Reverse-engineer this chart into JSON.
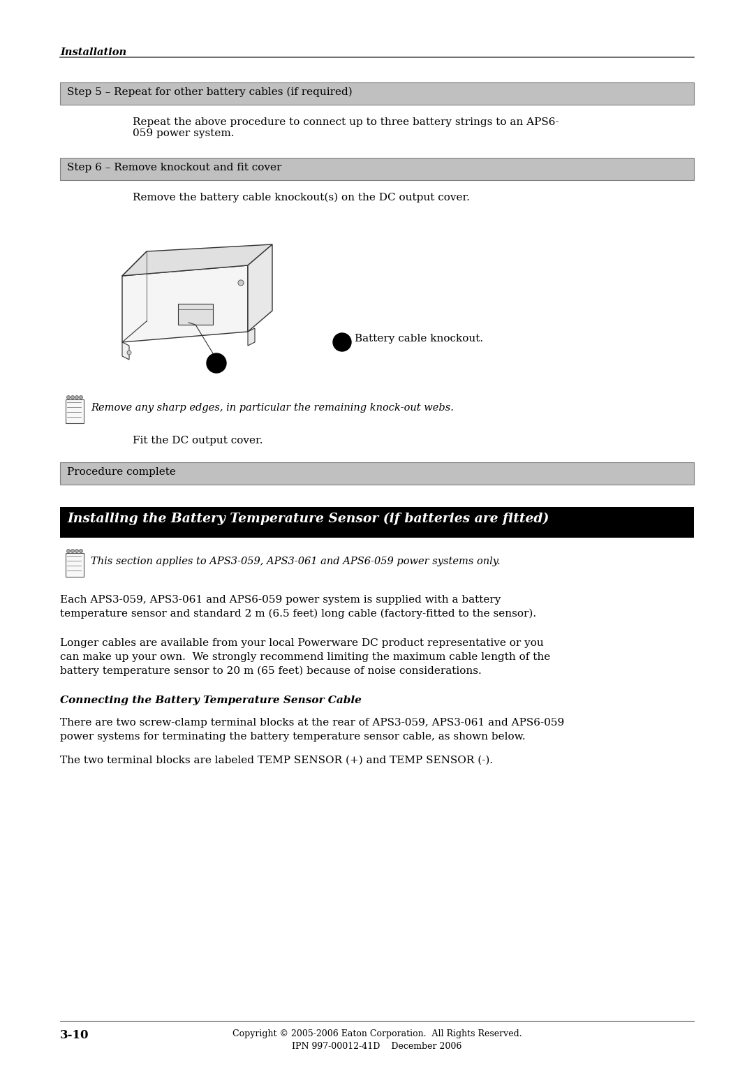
{
  "page_bg": "#ffffff",
  "body_fontsize": 11.0,
  "header_text": "Installation",
  "step5_box_text": "Step 5 – Repeat for other battery cables (if required)",
  "step5_body": "Repeat the above procedure to connect up to three battery strings to an APS6-\n059 power system.",
  "step6_box_text": "Step 6 – Remove knockout and fit cover",
  "step6_body": "Remove the battery cable knockout(s) on the DC output cover.",
  "note_text": "Remove any sharp edges, in particular the remaining knock-out webs.",
  "fit_cover_text": "Fit the DC output cover.",
  "proc_box_text": "Procedure complete",
  "callout_text": "Battery cable knockout.",
  "section_title": "Installing the Battery Temperature Sensor (if batteries are fitted)",
  "note2_text": "This section applies to APS3-059, APS3-061 and APS6-059 power systems only.",
  "para1_line1": "Each APS3-059, APS3-061 and APS6-059 power system is supplied with a battery",
  "para1_line2": "temperature sensor and standard 2 m (6.5 feet) long cable (factory-fitted to the sensor).",
  "para2_line1": "Longer cables are available from your local Powerware DC product representative or you",
  "para2_line2": "can make up your own.  We strongly recommend limiting the maximum cable length of the",
  "para2_line3": "battery temperature sensor to 20 m (65 feet) because of noise considerations.",
  "sub_heading": "Connecting the Battery Temperature Sensor Cable",
  "para3_line1": "There are two screw-clamp terminal blocks at the rear of APS3-059, APS3-061 and APS6-059",
  "para3_line2": "power systems for terminating the battery temperature sensor cable, as shown below.",
  "para4": "The two terminal blocks are labeled TEMP SENSOR (+) and TEMP SENSOR (-).",
  "footer_text1": "Copyright © 2005-2006 Eaton Corporation.  All Rights Reserved.",
  "footer_text2": "IPN 997-00012-41D    December 2006",
  "page_num": "3-10",
  "step_box_bg": "#c0c0c0",
  "step_box_edge": "#808080",
  "section_bg": "#000000",
  "section_fg": "#ffffff"
}
